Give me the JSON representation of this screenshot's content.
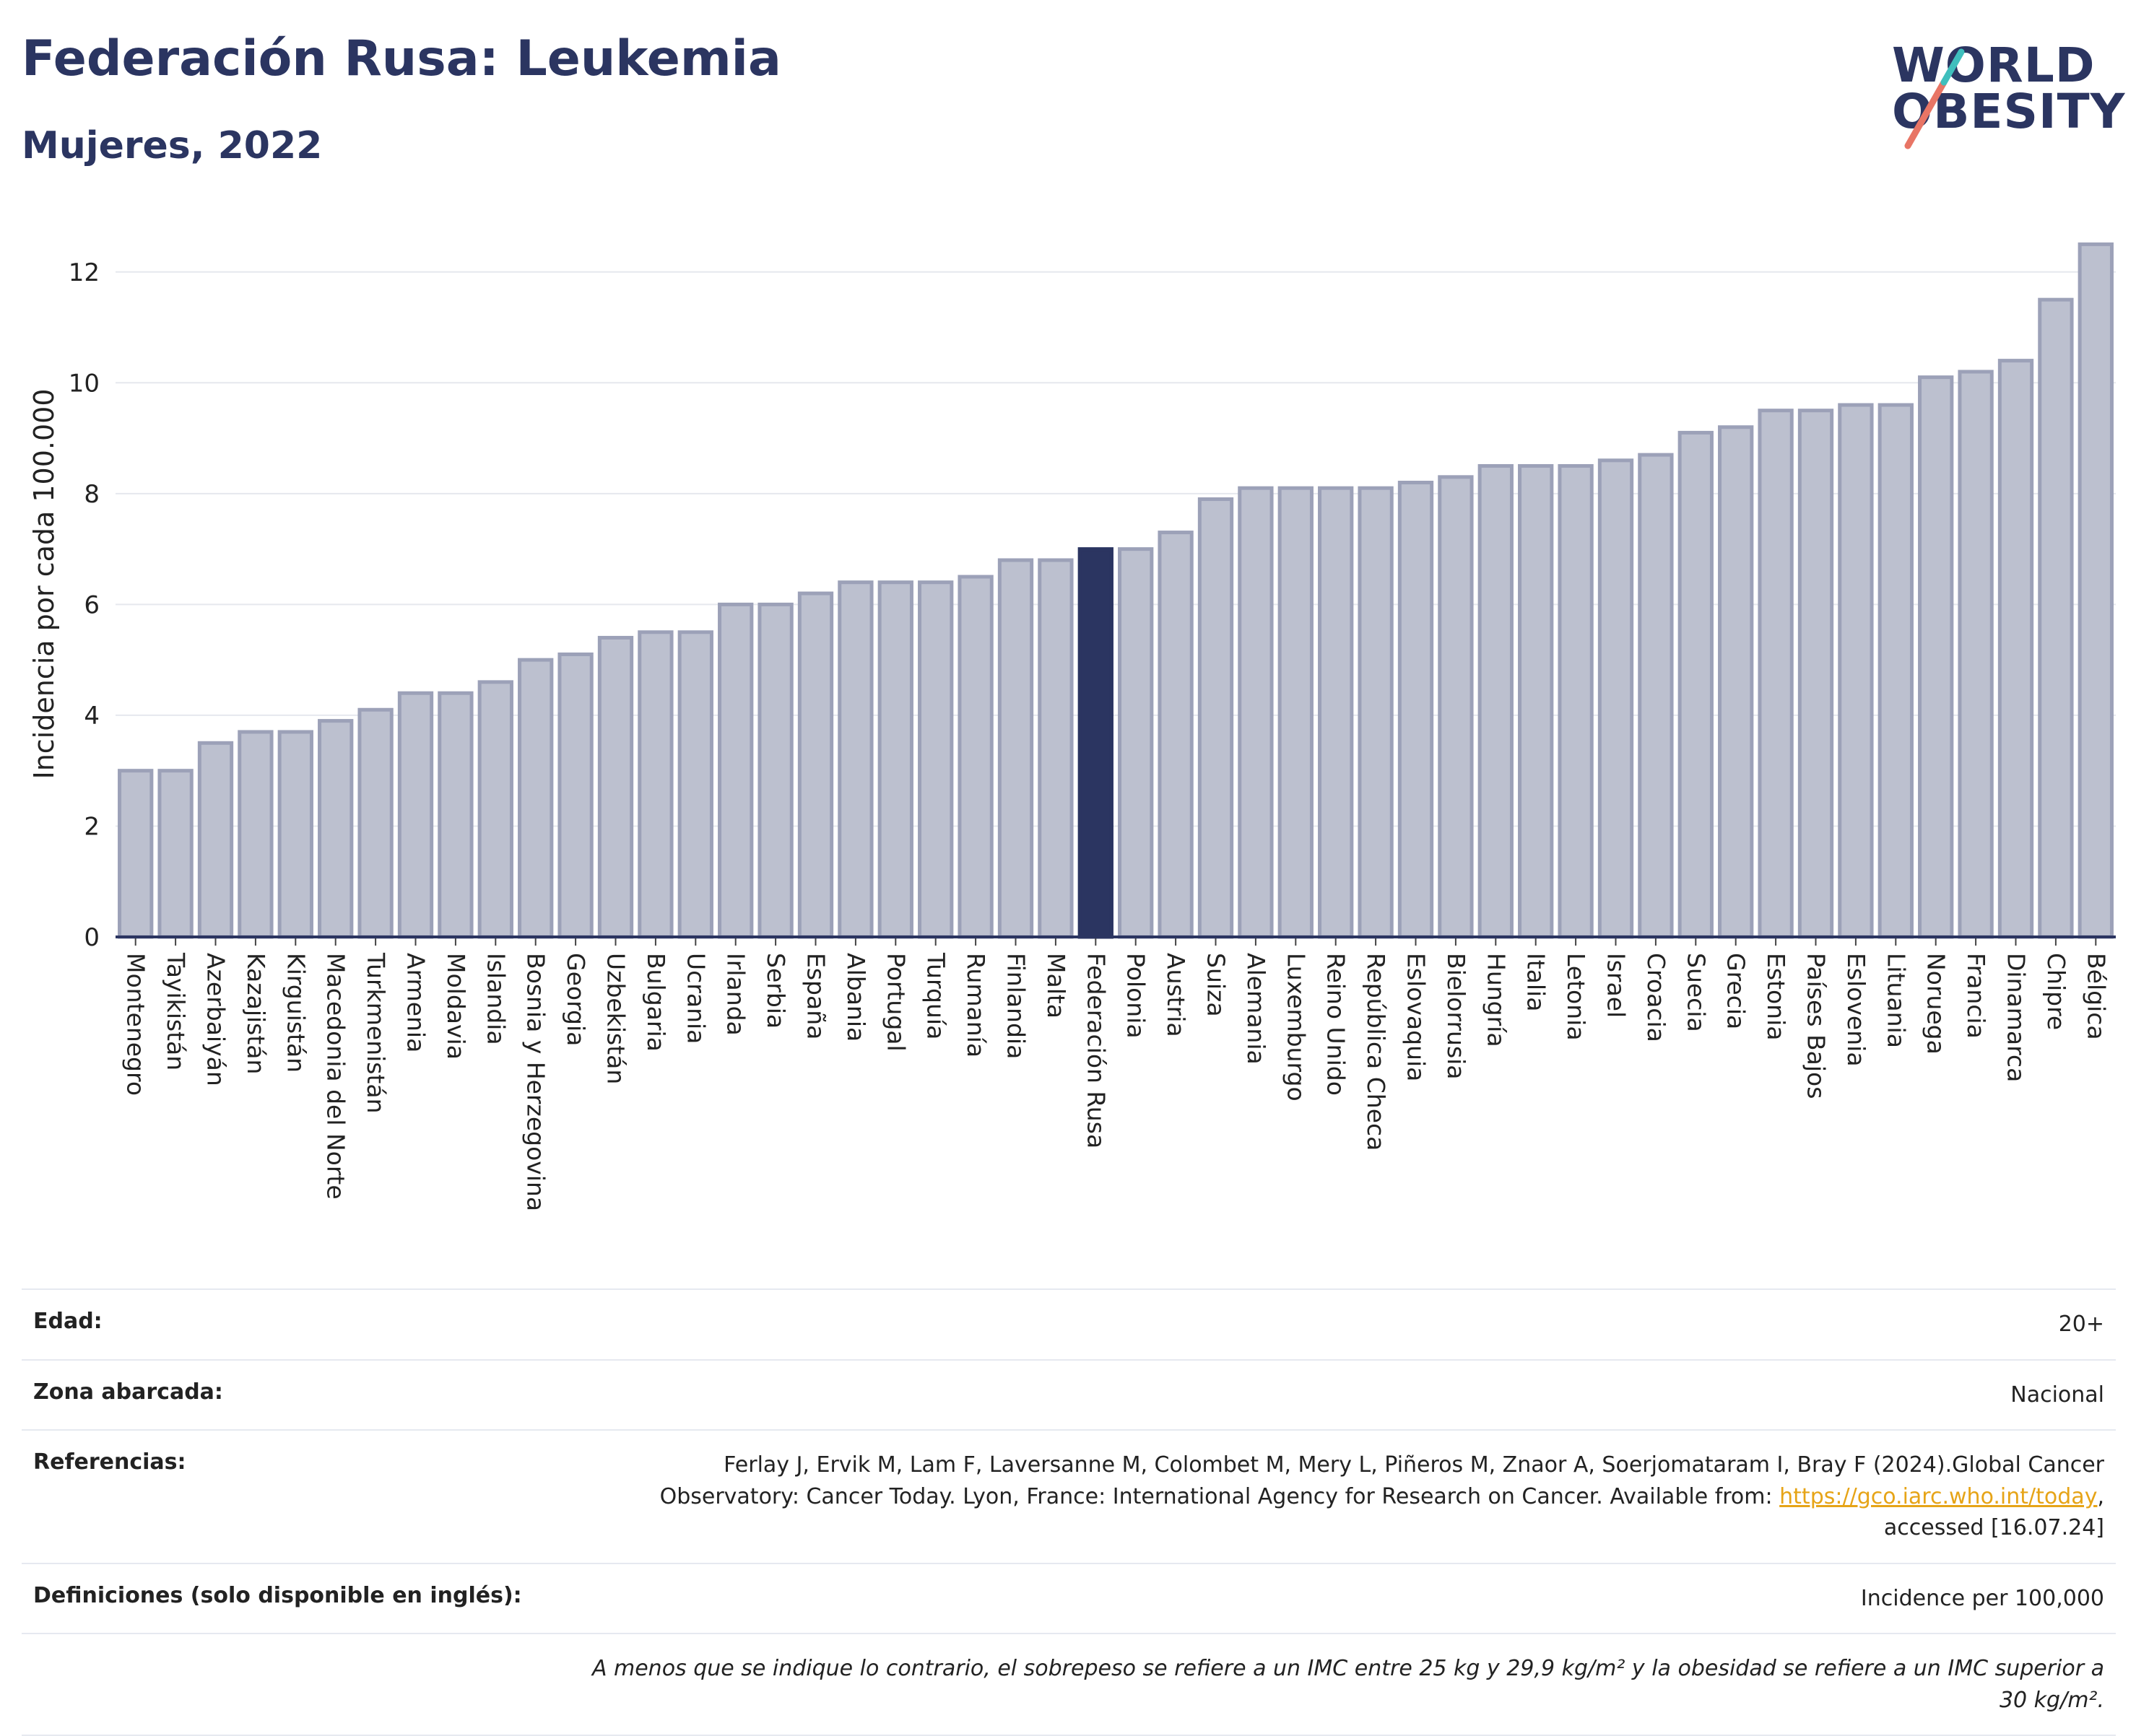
{
  "header": {
    "title": "Federación Rusa: Leukemia",
    "subtitle": "Mujeres, 2022"
  },
  "logo": {
    "line1": "WORLD",
    "line2": "OBESITY"
  },
  "colors": {
    "bar": "#bcc0cf",
    "bar_stroke": "#9ca1b8",
    "highlight": "#2b3561",
    "axis": "#2b3561",
    "grid": "#e6e8ee"
  },
  "chart_data": {
    "type": "bar",
    "ylabel": "Incidencia por cada 100.000",
    "ylim": [
      0,
      13
    ],
    "yticks": [
      0,
      2,
      4,
      6,
      8,
      10,
      12
    ],
    "highlight": "Federación Rusa",
    "categories": [
      "Montenegro",
      "Tayikistán",
      "Azerbaiyán",
      "Kazajistán",
      "Kirguistán",
      "Macedonia del Norte",
      "Turkmenistán",
      "Armenia",
      "Moldavia",
      "Islandia",
      "Bosnia y Herzegovina",
      "Georgia",
      "Uzbekistán",
      "Bulgaria",
      "Ucrania",
      "Irlanda",
      "Serbia",
      "España",
      "Albania",
      "Portugal",
      "Turquía",
      "Rumanía",
      "Finlandia",
      "Malta",
      "Federación Rusa",
      "Polonia",
      "Austria",
      "Suiza",
      "Alemania",
      "Luxemburgo",
      "Reino Unido",
      "República Checa",
      "Eslovaquia",
      "Bielorrusia",
      "Hungría",
      "Italia",
      "Letonia",
      "Israel",
      "Croacia",
      "Suecia",
      "Grecia",
      "Estonia",
      "Países Bajos",
      "Eslovenia",
      "Lituania",
      "Noruega",
      "Francia",
      "Dinamarca",
      "Chipre",
      "Bélgica"
    ],
    "values": [
      3.0,
      3.0,
      3.5,
      3.7,
      3.7,
      3.9,
      4.1,
      4.4,
      4.4,
      4.6,
      5.0,
      5.1,
      5.4,
      5.5,
      5.5,
      6.0,
      6.0,
      6.2,
      6.4,
      6.4,
      6.4,
      6.5,
      6.8,
      6.8,
      7.0,
      7.0,
      7.3,
      7.9,
      8.1,
      8.1,
      8.1,
      8.1,
      8.2,
      8.3,
      8.5,
      8.5,
      8.5,
      8.6,
      8.7,
      9.1,
      9.2,
      9.5,
      9.5,
      9.6,
      9.6,
      10.1,
      10.2,
      10.4,
      11.5,
      12.5
    ]
  },
  "meta": {
    "age_label": "Edad:",
    "age_value": "20+",
    "area_label": "Zona abarcada:",
    "area_value": "Nacional",
    "refs_label": "Referencias:",
    "refs_text_1": "Ferlay J, Ervik M, Lam F, Laversanne M, Colombet M, Mery L, Piñeros M, Znaor A, Soerjomataram I, Bray F (2024).Global Cancer Observatory: Cancer Today. Lyon, France: International Agency for Research on Cancer. Available from: ",
    "refs_link": "https://gco.iarc.who.int/today",
    "refs_text_2": ", accessed [16.07.24]",
    "defs_label": "Definiciones (solo disponible en inglés):",
    "defs_value": "Incidence per 100,000",
    "note": "A menos que se indique lo contrario, el sobrepeso se refiere a un IMC entre 25 kg y 29,9 kg/m² y la obesidad se refiere a un IMC superior a 30 kg/m²."
  }
}
